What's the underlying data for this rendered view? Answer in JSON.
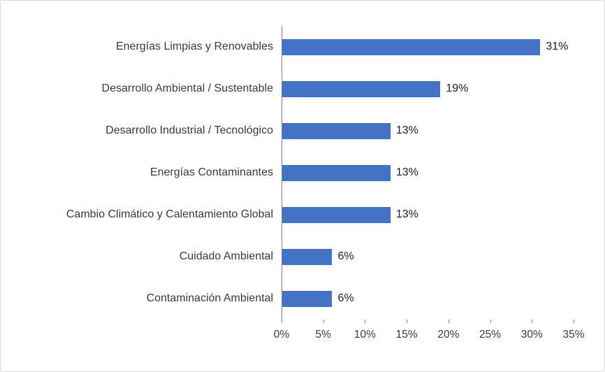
{
  "chart_data": {
    "type": "bar",
    "orientation": "horizontal",
    "title": "",
    "xlabel": "",
    "ylabel": "",
    "categories": [
      "Energías Limpias y Renovables",
      "Desarrollo Ambiental / Sustentable",
      "Desarrollo Industrial / Tecnológico",
      "Energías Contaminantes",
      "Cambio Climático y Calentamiento Global",
      "Cuidado Ambiental",
      "Contaminación Ambiental"
    ],
    "values": [
      31,
      19,
      13,
      13,
      13,
      6,
      6
    ],
    "data_labels": [
      "31%",
      "19%",
      "13%",
      "13%",
      "13%",
      "6%",
      "6%"
    ],
    "xlim": [
      0,
      35
    ],
    "x_tick_values": [
      0,
      5,
      10,
      15,
      20,
      25,
      30,
      35
    ],
    "x_ticks": [
      "0%",
      "5%",
      "10%",
      "15%",
      "20%",
      "25%",
      "30%",
      "35%"
    ],
    "grid": false,
    "legend": false,
    "colors": {
      "bar": "#4472c4",
      "axis_line": "#8c8c8c",
      "category_text": "#3f3f3f",
      "value_text": "#262626",
      "frame_border": "#d9d9d9",
      "background": "#ffffff"
    }
  }
}
